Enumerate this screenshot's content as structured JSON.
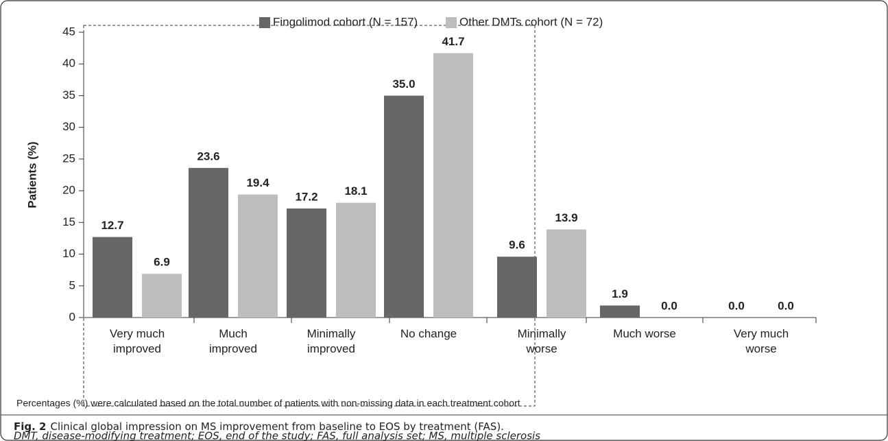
{
  "chart_data": {
    "type": "bar",
    "ylabel": "Patients (%)",
    "categories": [
      "Very much\nimproved",
      "Much\nimproved",
      "Minimally\nimproved",
      "No change",
      "Minimally\nworse",
      "Much worse",
      "Very much\nworse"
    ],
    "series": [
      {
        "name": "Fingolimod cohort (N = 157)",
        "color": "#666666",
        "values": [
          12.7,
          23.6,
          17.2,
          35,
          9.6,
          1.9,
          0
        ],
        "value_labels": [
          "12.7",
          "23.6",
          "17.2",
          "35.0",
          "9.6",
          "1.9",
          "0.0"
        ]
      },
      {
        "name": "Other DMTs cohort (N = 72)",
        "color": "#bdbdbd",
        "values": [
          6.9,
          19.4,
          18.1,
          41.7,
          13.9,
          0,
          0
        ],
        "value_labels": [
          "6.9",
          "19.4",
          "18.1",
          "41.7",
          "13.9",
          "0.0",
          "0.0"
        ]
      }
    ],
    "ylim": [
      0,
      45
    ],
    "yticks": [
      0,
      5,
      10,
      15,
      20,
      25,
      30,
      35,
      40,
      45
    ],
    "legend": "top",
    "footnote": "Percentages (%) were calculated based on the total number of patients with non-missing data in each treatment cohort"
  },
  "caption": {
    "label": "Fig. 2",
    "text": "Clinical global impression on MS improvement from baseline to EOS by treatment (FAS).",
    "abbreviations": "DMT, disease-modifying treatment; EOS, end of the study; FAS, full analysis set; MS, multiple sclerosis"
  }
}
